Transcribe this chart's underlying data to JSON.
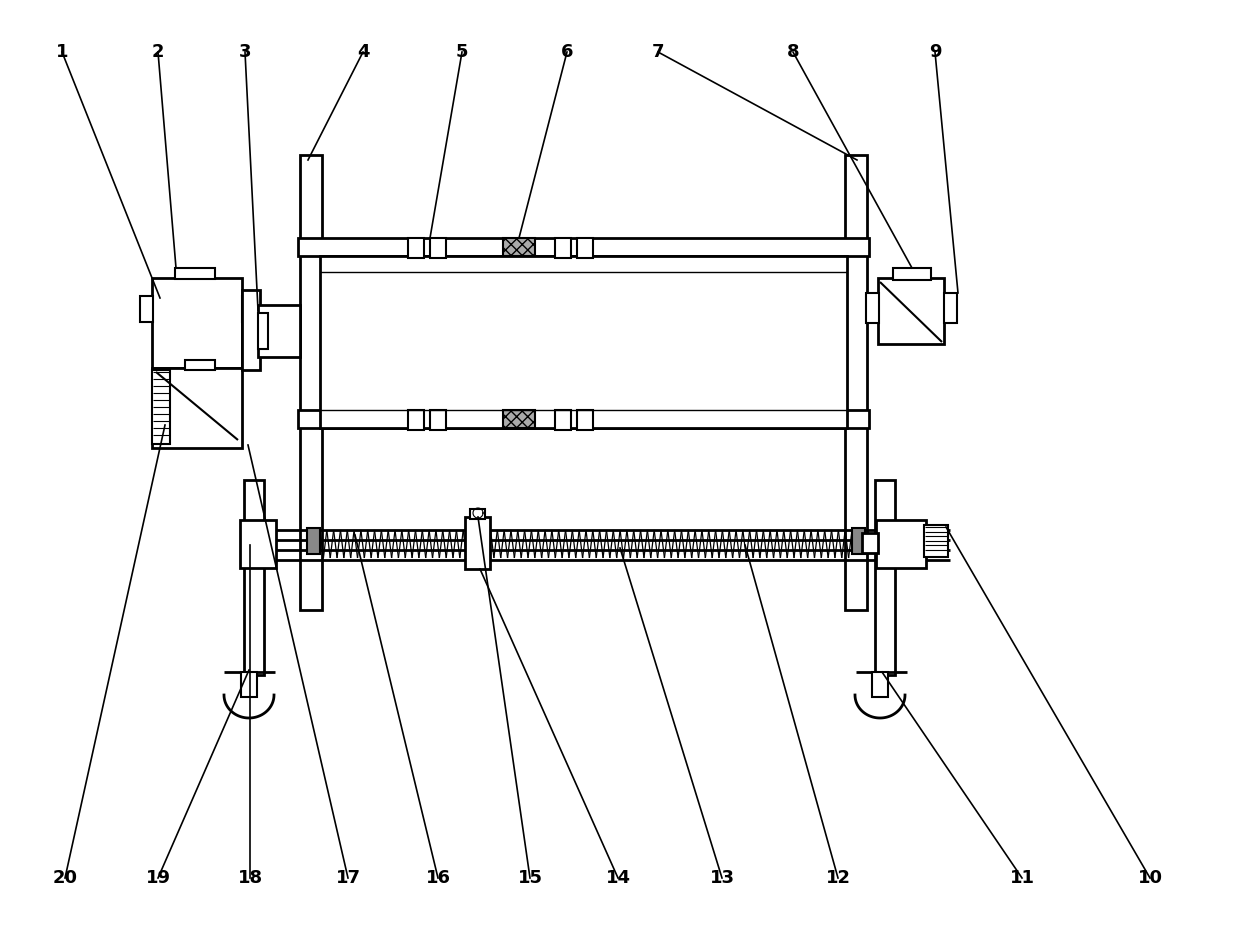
{
  "bg_color": "#ffffff",
  "lc": "#000000",
  "lw": 1.5,
  "lw2": 2.0,
  "fig_width": 12.4,
  "fig_height": 9.32,
  "dpi": 100,
  "label_fs": 13
}
